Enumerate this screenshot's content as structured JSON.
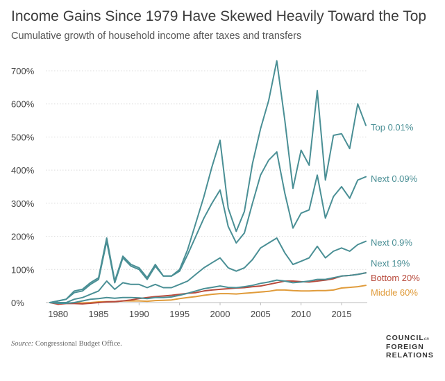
{
  "chart_data": {
    "type": "line",
    "title": "Income Gains Since 1979 Have Skewed Heavily Toward the Top",
    "subtitle": "Cumulative growth of household income after taxes and transfers",
    "xlabel": "",
    "ylabel": "",
    "xlim": [
      1979,
      2018
    ],
    "ylim": [
      0,
      700
    ],
    "x_ticks": [
      "1980",
      "1985",
      "1990",
      "1995",
      "2000",
      "2005",
      "2010",
      "2015"
    ],
    "y_ticks": [
      "0%",
      "100%",
      "200%",
      "300%",
      "400%",
      "500%",
      "600%",
      "700%"
    ],
    "x": [
      1979,
      1980,
      1981,
      1982,
      1983,
      1984,
      1985,
      1986,
      1987,
      1988,
      1989,
      1990,
      1991,
      1992,
      1993,
      1994,
      1995,
      1996,
      1997,
      1998,
      1999,
      2000,
      2001,
      2002,
      2003,
      2004,
      2005,
      2006,
      2007,
      2008,
      2009,
      2010,
      2011,
      2012,
      2013,
      2014,
      2015,
      2016,
      2017,
      2018
    ],
    "series": [
      {
        "name": "Top 0.01%",
        "color": "#4a8f95",
        "values": [
          0,
          5,
          10,
          35,
          40,
          60,
          75,
          195,
          65,
          140,
          115,
          105,
          75,
          115,
          80,
          80,
          100,
          160,
          240,
          320,
          410,
          490,
          285,
          215,
          275,
          420,
          525,
          610,
          730,
          550,
          345,
          460,
          415,
          640,
          370,
          505,
          510,
          465,
          600,
          535
        ]
      },
      {
        "name": "Next 0.09%",
        "color": "#4a8f95",
        "values": [
          0,
          5,
          10,
          30,
          35,
          55,
          70,
          185,
          60,
          135,
          110,
          100,
          70,
          110,
          80,
          80,
          95,
          145,
          200,
          255,
          300,
          340,
          230,
          180,
          210,
          300,
          385,
          430,
          455,
          330,
          225,
          270,
          280,
          385,
          255,
          320,
          350,
          315,
          370,
          380
        ]
      },
      {
        "name": "Next 0.9%",
        "color": "#4a8f95",
        "values": [
          0,
          0,
          0,
          10,
          15,
          25,
          35,
          65,
          40,
          60,
          55,
          55,
          45,
          55,
          45,
          45,
          55,
          65,
          85,
          105,
          120,
          135,
          105,
          95,
          105,
          130,
          165,
          180,
          195,
          150,
          115,
          125,
          135,
          170,
          135,
          155,
          165,
          155,
          175,
          185
        ]
      },
      {
        "name": "Next 19%",
        "color": "#4a8f95",
        "values": [
          0,
          -2,
          -2,
          0,
          5,
          10,
          12,
          15,
          13,
          15,
          15,
          14,
          12,
          15,
          15,
          17,
          22,
          28,
          35,
          42,
          46,
          50,
          46,
          45,
          48,
          52,
          58,
          62,
          68,
          65,
          60,
          62,
          65,
          70,
          70,
          75,
          80,
          82,
          85,
          90
        ]
      },
      {
        "name": "Bottom 20%",
        "color": "#b84a3c",
        "values": [
          0,
          -5,
          -3,
          -3,
          -4,
          -2,
          0,
          2,
          3,
          5,
          8,
          12,
          15,
          18,
          20,
          22,
          25,
          28,
          30,
          35,
          38,
          40,
          42,
          44,
          45,
          48,
          50,
          55,
          60,
          65,
          65,
          63,
          62,
          65,
          68,
          72,
          80,
          82,
          85,
          90
        ]
      },
      {
        "name": "Middle 60%",
        "color": "#e09b3a",
        "values": [
          0,
          -3,
          -2,
          -1,
          -1,
          0,
          2,
          3,
          3,
          5,
          5,
          5,
          4,
          6,
          7,
          8,
          12,
          15,
          18,
          22,
          25,
          27,
          27,
          26,
          28,
          30,
          32,
          34,
          38,
          38,
          36,
          35,
          35,
          36,
          36,
          38,
          44,
          46,
          48,
          52
        ]
      }
    ]
  },
  "source_label": "Source:",
  "source_text": " Congressional Budget Office.",
  "logo": {
    "line1": "COUNCIL",
    "small": "on",
    "line2": "FOREIGN",
    "line3": "RELATIONS"
  }
}
